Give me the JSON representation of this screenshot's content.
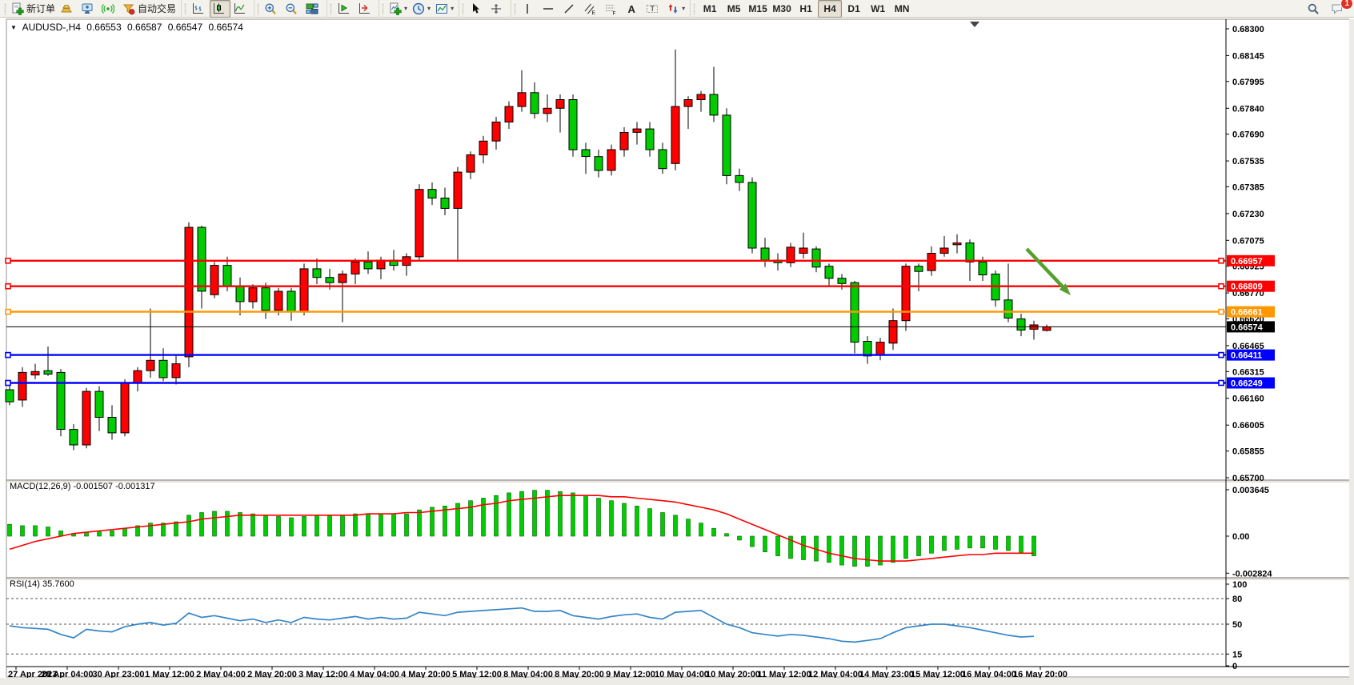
{
  "toolbar": {
    "groups": [
      {
        "name": "trade-group",
        "items": [
          {
            "icon": "new-order",
            "label": "新订单",
            "name": "new-order-button"
          },
          {
            "icon": "gold",
            "name": "deposit-button"
          },
          {
            "icon": "support",
            "name": "support-button"
          },
          {
            "icon": "signals",
            "name": "signals-button"
          },
          {
            "icon": "autotrade",
            "label": "自动交易",
            "name": "autotrading-button"
          }
        ]
      },
      {
        "name": "chart-type-group",
        "items": [
          {
            "icon": "bar-chart",
            "name": "bar-chart-button"
          },
          {
            "icon": "candle-chart",
            "name": "candlestick-chart-button",
            "active": true
          },
          {
            "icon": "line-chart",
            "name": "line-chart-button"
          }
        ]
      },
      {
        "name": "zoom-group",
        "items": [
          {
            "icon": "zoom-in",
            "name": "zoom-in-button"
          },
          {
            "icon": "zoom-out",
            "name": "zoom-out-button"
          },
          {
            "icon": "tile-windows",
            "name": "tile-windows-button"
          }
        ]
      },
      {
        "name": "scroll-group",
        "items": [
          {
            "icon": "auto-scroll",
            "name": "auto-scroll-button"
          },
          {
            "icon": "chart-shift",
            "name": "chart-shift-button"
          }
        ]
      },
      {
        "name": "insert-group",
        "items": [
          {
            "icon": "indicators",
            "caret": true,
            "name": "indicators-button"
          },
          {
            "icon": "periods",
            "caret": true,
            "name": "periods-button"
          },
          {
            "icon": "templates",
            "caret": true,
            "name": "templates-button"
          }
        ]
      },
      {
        "name": "pointer-group",
        "items": [
          {
            "icon": "cursor",
            "name": "cursor-button"
          },
          {
            "icon": "crosshair",
            "name": "crosshair-button"
          }
        ]
      },
      {
        "name": "objects-group",
        "items": [
          {
            "icon": "vline",
            "name": "vertical-line-button"
          },
          {
            "icon": "hline",
            "name": "horizontal-line-button"
          },
          {
            "icon": "trendline",
            "name": "trendline-button"
          },
          {
            "icon": "channel",
            "name": "equidistant-channel-button"
          },
          {
            "icon": "fibo",
            "name": "fibonacci-button"
          },
          {
            "icon": "text",
            "name": "text-button"
          },
          {
            "icon": "text-label",
            "name": "text-label-button"
          },
          {
            "icon": "arrows",
            "caret": true,
            "name": "arrows-button"
          }
        ]
      },
      {
        "name": "timeframes-group",
        "items": [
          {
            "label": "M1",
            "name": "timeframe-m1"
          },
          {
            "label": "M5",
            "name": "timeframe-m5"
          },
          {
            "label": "M15",
            "name": "timeframe-m15"
          },
          {
            "label": "M30",
            "name": "timeframe-m30"
          },
          {
            "label": "H1",
            "name": "timeframe-h1"
          },
          {
            "label": "H4",
            "name": "timeframe-h4",
            "active": true
          },
          {
            "label": "D1",
            "name": "timeframe-d1"
          },
          {
            "label": "W1",
            "name": "timeframe-w1"
          },
          {
            "label": "MN",
            "name": "timeframe-mn"
          }
        ]
      }
    ],
    "right": [
      {
        "icon": "search",
        "name": "search-button"
      },
      {
        "icon": "chat",
        "badge": "1",
        "name": "notifications-button"
      }
    ]
  },
  "quote": {
    "dropdown": "▼",
    "symbol": "AUDUSD-,H4",
    "open": "0.66553",
    "high": "0.66587",
    "low": "0.66547",
    "close": "0.66574"
  },
  "indicators": {
    "macd_label": "MACD(12,26,9) -0.001507 -0.001317",
    "rsi_label": "RSI(14) 35.7600"
  },
  "chart_data": {
    "type": "candlestick",
    "title": "AUDUSD-,H4",
    "symbol": "AUDUSD",
    "timeframe": "H4",
    "price_range": [
      0.657,
      0.683
    ],
    "grid": false,
    "colors": {
      "bull": "#ff0000",
      "bear": "#00cc00",
      "wick": "#000000",
      "macd_hist": "#00cc00",
      "macd_signal": "#ff0000",
      "rsi_line": "#3585c8",
      "annotation": "#55a02e"
    },
    "price_axis_ticks": [
      "0.68300",
      "0.68145",
      "0.67995",
      "0.67840",
      "0.67690",
      "0.67535",
      "0.67385",
      "0.67230",
      "0.67075",
      "0.66925",
      "0.66770",
      "0.66620",
      "0.66465",
      "0.66315",
      "0.66160",
      "0.66005",
      "0.65855",
      "0.65700"
    ],
    "time_labels": [
      "27 Apr 2023",
      "28 Apr 04:00",
      "30 Apr 23:00",
      "1 May 12:00",
      "2 May 04:00",
      "2 May 20:00",
      "3 May 12:00",
      "4 May 04:00",
      "4 May 20:00",
      "5 May 12:00",
      "8 May 04:00",
      "8 May 20:00",
      "9 May 12:00",
      "10 May 04:00",
      "10 May 20:00",
      "11 May 12:00",
      "12 May 04:00",
      "14 May 23:00",
      "15 May 12:00",
      "16 May 04:00",
      "16 May 20:00"
    ],
    "candles": [
      [
        0.6621,
        0.6626,
        0.6612,
        0.6614
      ],
      [
        0.6615,
        0.6634,
        0.6611,
        0.6631
      ],
      [
        0.66295,
        0.6636,
        0.6627,
        0.66315
      ],
      [
        0.6632,
        0.6646,
        0.6629,
        0.663
      ],
      [
        0.6631,
        0.6633,
        0.6594,
        0.6598
      ],
      [
        0.6598,
        0.6601,
        0.6586,
        0.6589
      ],
      [
        0.6589,
        0.6622,
        0.6587,
        0.662
      ],
      [
        0.662,
        0.6623,
        0.6597,
        0.6605
      ],
      [
        0.6605,
        0.6612,
        0.6592,
        0.6596
      ],
      [
        0.6596,
        0.6627,
        0.6594,
        0.6625
      ],
      [
        0.6625,
        0.6634,
        0.662,
        0.6632
      ],
      [
        0.6632,
        0.6668,
        0.6628,
        0.6638
      ],
      [
        0.6638,
        0.6645,
        0.6626,
        0.6628
      ],
      [
        0.6628,
        0.6641,
        0.6624,
        0.6636
      ],
      [
        0.664,
        0.6718,
        0.6634,
        0.6715
      ],
      [
        0.6715,
        0.6716,
        0.6668,
        0.6678
      ],
      [
        0.6676,
        0.6695,
        0.6674,
        0.6693
      ],
      [
        0.6693,
        0.6698,
        0.6678,
        0.6681
      ],
      [
        0.6681,
        0.6686,
        0.6664,
        0.6672
      ],
      [
        0.6672,
        0.6682,
        0.6668,
        0.668
      ],
      [
        0.668,
        0.6683,
        0.6662,
        0.6667
      ],
      [
        0.6667,
        0.668,
        0.6664,
        0.6678
      ],
      [
        0.6678,
        0.668,
        0.6661,
        0.6666
      ],
      [
        0.6666,
        0.6694,
        0.6664,
        0.6691
      ],
      [
        0.6691,
        0.6697,
        0.6682,
        0.6686
      ],
      [
        0.6686,
        0.6691,
        0.6679,
        0.6683
      ],
      [
        0.6683,
        0.669,
        0.666,
        0.6688
      ],
      [
        0.6688,
        0.6697,
        0.6682,
        0.6695
      ],
      [
        0.6695,
        0.6701,
        0.6688,
        0.6691
      ],
      [
        0.6691,
        0.6698,
        0.6685,
        0.6696
      ],
      [
        0.6696,
        0.6702,
        0.669,
        0.6693
      ],
      [
        0.6693,
        0.67,
        0.6687,
        0.6698
      ],
      [
        0.6698,
        0.674,
        0.6696,
        0.6737
      ],
      [
        0.6737,
        0.6741,
        0.6728,
        0.6732
      ],
      [
        0.6732,
        0.6738,
        0.6722,
        0.6726
      ],
      [
        0.6726,
        0.675,
        0.6695,
        0.6747
      ],
      [
        0.6747,
        0.6759,
        0.6743,
        0.6757
      ],
      [
        0.6757,
        0.6768,
        0.6752,
        0.6765
      ],
      [
        0.6765,
        0.6779,
        0.676,
        0.6776
      ],
      [
        0.6776,
        0.6788,
        0.6772,
        0.6785
      ],
      [
        0.6785,
        0.6806,
        0.6782,
        0.6793
      ],
      [
        0.6793,
        0.6799,
        0.6778,
        0.6781
      ],
      [
        0.6781,
        0.6792,
        0.6776,
        0.6784
      ],
      [
        0.6784,
        0.6792,
        0.677,
        0.6789
      ],
      [
        0.6789,
        0.6792,
        0.6756,
        0.676
      ],
      [
        0.676,
        0.6764,
        0.6746,
        0.6756
      ],
      [
        0.6756,
        0.676,
        0.6744,
        0.6748
      ],
      [
        0.6748,
        0.6763,
        0.6745,
        0.676
      ],
      [
        0.676,
        0.6773,
        0.6756,
        0.677
      ],
      [
        0.677,
        0.6776,
        0.6763,
        0.6772
      ],
      [
        0.6772,
        0.6776,
        0.6756,
        0.676
      ],
      [
        0.676,
        0.6764,
        0.6746,
        0.6749
      ],
      [
        0.6752,
        0.6818,
        0.6748,
        0.6785
      ],
      [
        0.6785,
        0.6791,
        0.6772,
        0.6789
      ],
      [
        0.6789,
        0.6794,
        0.6782,
        0.6792
      ],
      [
        0.6792,
        0.6808,
        0.6776,
        0.678
      ],
      [
        0.678,
        0.6784,
        0.674,
        0.6745
      ],
      [
        0.6745,
        0.6749,
        0.6736,
        0.6741
      ],
      [
        0.6741,
        0.6744,
        0.67,
        0.6703
      ],
      [
        0.6703,
        0.6709,
        0.6692,
        0.6696
      ],
      [
        0.6696,
        0.67,
        0.669,
        0.66945
      ],
      [
        0.66945,
        0.6706,
        0.6692,
        0.67035
      ],
      [
        0.67,
        0.6712,
        0.6697,
        0.6703
      ],
      [
        0.67025,
        0.6704,
        0.6689,
        0.6692
      ],
      [
        0.66925,
        0.6694,
        0.6681,
        0.66855
      ],
      [
        0.66855,
        0.6688,
        0.6679,
        0.66825
      ],
      [
        0.6683,
        0.6684,
        0.6642,
        0.66485
      ],
      [
        0.6649,
        0.6652,
        0.6636,
        0.66405
      ],
      [
        0.6641,
        0.6651,
        0.6638,
        0.66485
      ],
      [
        0.6648,
        0.6668,
        0.6644,
        0.6661
      ],
      [
        0.6661,
        0.6694,
        0.6655,
        0.66925
      ],
      [
        0.66925,
        0.6694,
        0.6678,
        0.66895
      ],
      [
        0.669,
        0.6704,
        0.6687,
        0.67
      ],
      [
        0.67,
        0.671,
        0.6698,
        0.6703
      ],
      [
        0.6705,
        0.6711,
        0.67,
        0.6706
      ],
      [
        0.6706,
        0.6708,
        0.6684,
        0.6695
      ],
      [
        0.6695,
        0.6698,
        0.6684,
        0.66875
      ],
      [
        0.6688,
        0.669,
        0.6669,
        0.6673
      ],
      [
        0.6673,
        0.6694,
        0.666,
        0.66625
      ],
      [
        0.6662,
        0.6665,
        0.6652,
        0.66555
      ],
      [
        0.6656,
        0.6661,
        0.665,
        0.66585
      ],
      [
        0.66553,
        0.66587,
        0.66547,
        0.66574
      ]
    ],
    "hlines": [
      {
        "label": "0.66957",
        "value": 0.66957,
        "color": "#ff0000"
      },
      {
        "label": "0.66809",
        "value": 0.66809,
        "color": "#ff0000"
      },
      {
        "label": "0.66661",
        "value": 0.66661,
        "color": "#ff9800"
      },
      {
        "label": "0.66411",
        "value": 0.66411,
        "color": "#0000ff"
      },
      {
        "label": "0.66249",
        "value": 0.66249,
        "color": "#0000ff"
      }
    ],
    "current_price": {
      "label": "0.66574",
      "value": 0.66574,
      "color": "#000000"
    },
    "macd": {
      "axis_labels": [
        "0.003645",
        "0.00",
        "-0.002824"
      ],
      "axis_values": [
        0.003645,
        0,
        -0.002824
      ],
      "histogram": [
        0.0009,
        0.0008,
        0.0008,
        0.0007,
        0.0004,
        0.0002,
        0.0003,
        0.0004,
        0.0004,
        0.0006,
        0.0008,
        0.001,
        0.001,
        0.0011,
        0.0016,
        0.0018,
        0.0019,
        0.0019,
        0.0018,
        0.0017,
        0.0016,
        0.0015,
        0.0014,
        0.0015,
        0.0016,
        0.0016,
        0.0016,
        0.0017,
        0.0017,
        0.0017,
        0.0017,
        0.0017,
        0.002,
        0.0022,
        0.0023,
        0.0025,
        0.0027,
        0.0029,
        0.0031,
        0.0033,
        0.0034,
        0.0035,
        0.0035,
        0.0034,
        0.0033,
        0.0031,
        0.0029,
        0.0027,
        0.0025,
        0.0023,
        0.0021,
        0.0018,
        0.0016,
        0.0013,
        0.001,
        0.0006,
        0.0002,
        -0.0003,
        -0.0008,
        -0.0012,
        -0.0015,
        -0.0017,
        -0.0018,
        -0.0019,
        -0.002,
        -0.0022,
        -0.0023,
        -0.0023,
        -0.0022,
        -0.002,
        -0.0017,
        -0.0015,
        -0.0013,
        -0.0011,
        -0.001,
        -0.0009,
        -0.0009,
        -0.001,
        -0.0011,
        -0.0013,
        -0.0015
      ],
      "signal": [
        -0.001,
        -0.0007,
        -0.0004,
        -0.0002,
        0,
        0.0002,
        0.0003,
        0.0004,
        0.0005,
        0.0006,
        0.0007,
        0.0008,
        0.0009,
        0.001,
        0.0011,
        0.0013,
        0.0014,
        0.0015,
        0.0016,
        0.0016,
        0.0016,
        0.0016,
        0.0016,
        0.0016,
        0.0016,
        0.0016,
        0.0016,
        0.0016,
        0.0017,
        0.0017,
        0.0017,
        0.0018,
        0.0018,
        0.0019,
        0.002,
        0.0021,
        0.0022,
        0.0024,
        0.0025,
        0.0027,
        0.0028,
        0.0029,
        0.003,
        0.0031,
        0.0031,
        0.0031,
        0.0031,
        0.003,
        0.003,
        0.0029,
        0.0028,
        0.0027,
        0.0026,
        0.0024,
        0.0022,
        0.002,
        0.0017,
        0.0013,
        0.0009,
        0.0005,
        0.0001,
        -0.0003,
        -0.0007,
        -0.001,
        -0.0013,
        -0.0015,
        -0.0017,
        -0.0018,
        -0.0019,
        -0.0019,
        -0.0019,
        -0.0018,
        -0.0017,
        -0.0016,
        -0.0015,
        -0.0014,
        -0.0014,
        -0.0013,
        -0.0013,
        -0.0013,
        -0.0013
      ]
    },
    "rsi": {
      "axis_labels": [
        "100",
        "80",
        "50",
        "15",
        "0"
      ],
      "axis_values": [
        100,
        80,
        50,
        15,
        0
      ],
      "dashed_levels": [
        80,
        50,
        15
      ],
      "values": [
        48,
        46,
        45,
        44,
        38,
        34,
        44,
        42,
        41,
        47,
        50,
        52,
        49,
        51,
        63,
        58,
        60,
        57,
        54,
        56,
        52,
        55,
        52,
        58,
        56,
        55,
        57,
        59,
        56,
        58,
        56,
        57,
        64,
        62,
        60,
        64,
        65,
        66,
        67,
        68,
        69,
        65,
        65,
        66,
        60,
        58,
        56,
        59,
        61,
        62,
        58,
        56,
        64,
        65,
        66,
        58,
        50,
        46,
        40,
        38,
        36,
        38,
        37,
        35,
        33,
        30,
        29,
        31,
        33,
        40,
        46,
        48,
        50,
        50,
        48,
        46,
        43,
        40,
        37,
        35,
        35.76
      ]
    },
    "annotation_arrow": {
      "from": [
        1283,
        311
      ],
      "to": [
        1338,
        369
      ],
      "color": "#55a02e"
    }
  }
}
